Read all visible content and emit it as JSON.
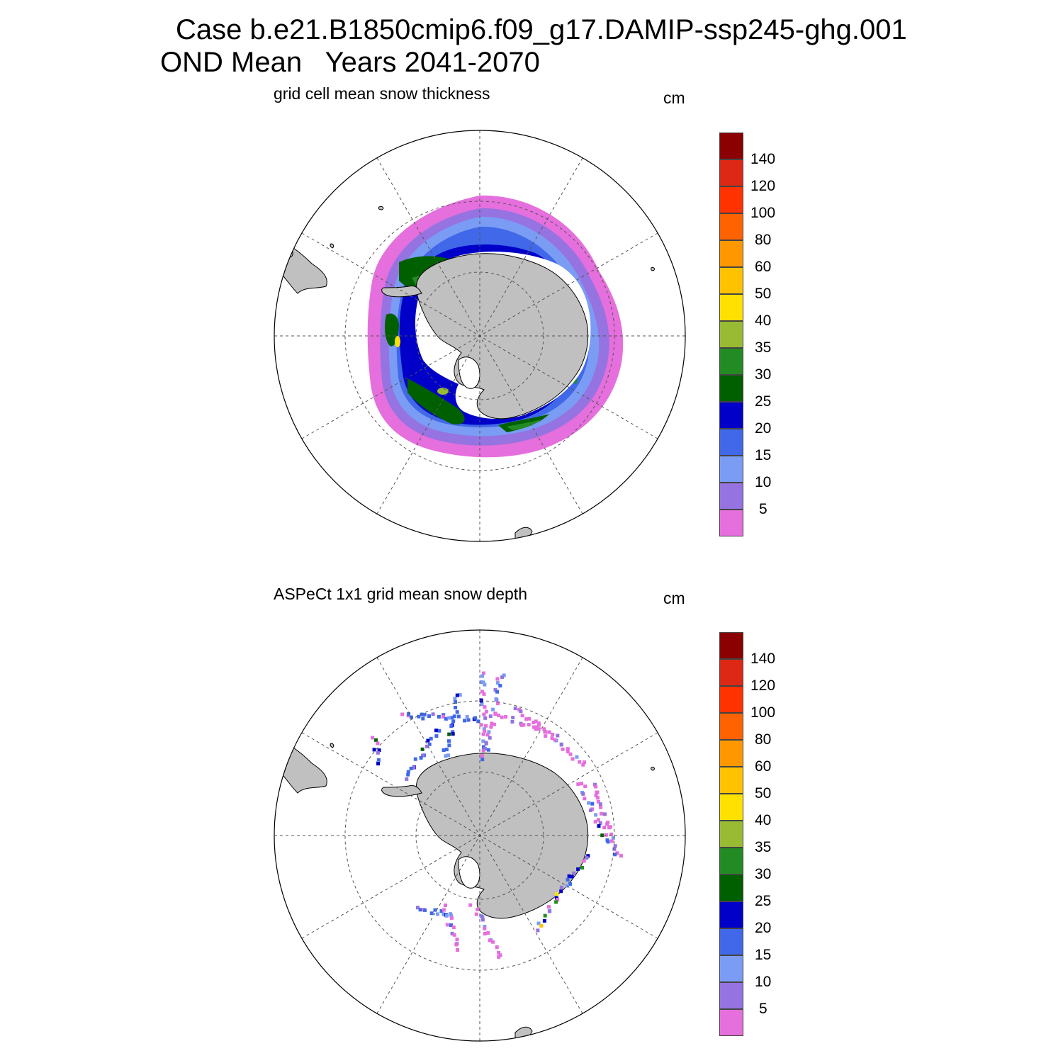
{
  "title_line1": "Case b.e21.B1850cmip6.f09_g17.DAMIP-ssp245-ghg.001",
  "title_line2": "OND Mean   Years 2041-2070",
  "panels": [
    {
      "subtitle": "grid cell mean snow thickness",
      "units": "cm"
    },
    {
      "subtitle": "ASPeCt 1x1 grid mean snow depth",
      "units": "cm"
    }
  ],
  "colorbar": {
    "labels": [
      "5",
      "10",
      "15",
      "20",
      "25",
      "30",
      "35",
      "40",
      "50",
      "60",
      "80",
      "100",
      "120",
      "140"
    ],
    "colors": [
      "#e56fdc",
      "#9573e0",
      "#7b9cf4",
      "#4068e8",
      "#0000c8",
      "#006000",
      "#238b23",
      "#99bb33",
      "#ffe100",
      "#ffc200",
      "#ff9800",
      "#ff6200",
      "#ff3200",
      "#dc2814",
      "#8b0000"
    ]
  },
  "style": {
    "land": "#c0c0c0",
    "grid": "#555555"
  }
}
